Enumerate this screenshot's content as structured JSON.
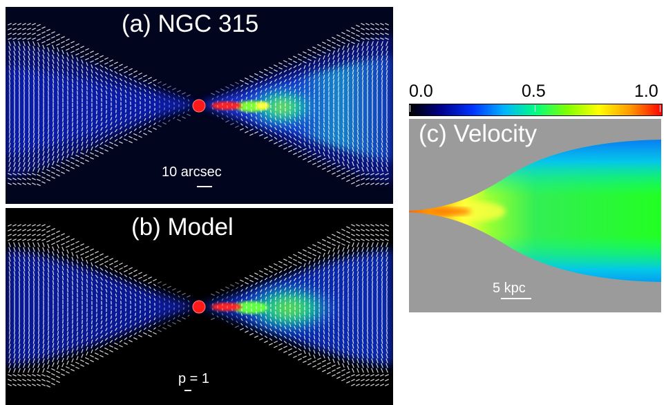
{
  "panels": {
    "a": {
      "title": "(a) NGC 315",
      "scale_label": "10 arcsec"
    },
    "b": {
      "title": "(b) Model",
      "scale_label": "p = 1"
    },
    "c": {
      "title": "(c) Velocity",
      "scale_label": "5 kpc"
    }
  },
  "colorbar": {
    "ticks": [
      "0.0",
      "0.5",
      "1.0"
    ],
    "colors": [
      "#000000",
      "#00008b",
      "#0033ff",
      "#00b4ff",
      "#00ff80",
      "#80ff00",
      "#ffff00",
      "#ff9900",
      "#ff0000"
    ]
  },
  "colors": {
    "background_dark": "#02051e",
    "velocity_background": "#9b9b9b",
    "core": "#ff1a1a",
    "vectors": "#ffffff"
  }
}
